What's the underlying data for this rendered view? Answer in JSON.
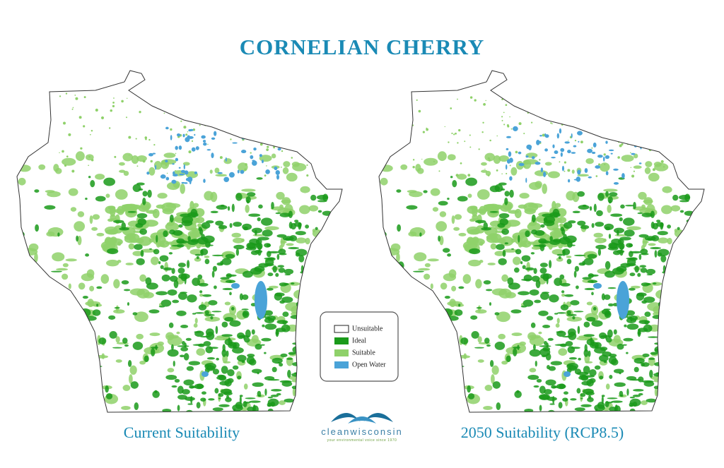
{
  "title": "CORNELIAN CHERRY",
  "maps": [
    {
      "caption": "Current Suitability"
    },
    {
      "caption": "2050 Suitability (RCP8.5)"
    }
  ],
  "legend": [
    {
      "label": "Unsuitable",
      "color": "#ffffff"
    },
    {
      "label": "Ideal",
      "color": "#1a9a1a"
    },
    {
      "label": "Suitable",
      "color": "#8fd16a"
    },
    {
      "label": "Open Water",
      "color": "#4aa3d8"
    }
  ],
  "logo": {
    "name": "cleanwisconsin",
    "tagline": "your environmental voice since 1970"
  }
}
